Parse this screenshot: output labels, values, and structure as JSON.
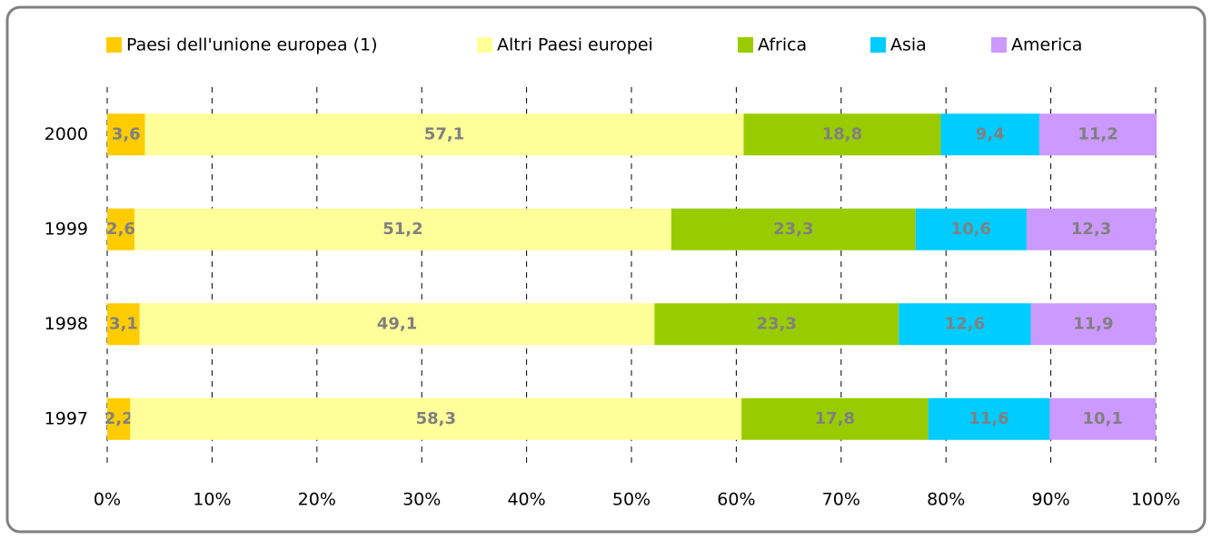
{
  "chart_data": {
    "type": "stacked-bar-horizontal",
    "categories": [
      "2000",
      "1999",
      "1998",
      "1997"
    ],
    "series": [
      {
        "name": "Paesi dell'unione europea (1)",
        "color": "#ffcc00",
        "values": [
          3.6,
          2.6,
          3.1,
          2.2
        ],
        "value_labels": [
          "3,6",
          "2,6",
          "3,1",
          "2,2"
        ]
      },
      {
        "name": "Altri Paesi europei",
        "color": "#ffff99",
        "values": [
          57.1,
          51.2,
          49.1,
          58.3
        ],
        "value_labels": [
          "57,1",
          "51,2",
          "49,1",
          "58,3"
        ]
      },
      {
        "name": "Africa",
        "color": "#99cc00",
        "values": [
          18.8,
          23.3,
          23.3,
          17.8
        ],
        "value_labels": [
          "18,8",
          "23,3",
          "23,3",
          "17,8"
        ]
      },
      {
        "name": "Asia",
        "color": "#00ccff",
        "values": [
          9.4,
          10.6,
          12.6,
          11.6
        ],
        "value_labels": [
          "9,4",
          "10,6",
          "12,6",
          "11,6"
        ]
      },
      {
        "name": "America",
        "color": "#cc99ff",
        "values": [
          11.2,
          12.3,
          11.9,
          10.1
        ],
        "value_labels": [
          "11,2",
          "12,3",
          "11,9",
          "10,1"
        ]
      }
    ],
    "xlim": [
      0,
      100
    ],
    "xticks": [
      {
        "value": 0,
        "label": "0%"
      },
      {
        "value": 10,
        "label": "10%"
      },
      {
        "value": 20,
        "label": "20%"
      },
      {
        "value": 30,
        "label": "30%"
      },
      {
        "value": 40,
        "label": "40%"
      },
      {
        "value": 50,
        "label": "50%"
      },
      {
        "value": 60,
        "label": "60%"
      },
      {
        "value": 70,
        "label": "70%"
      },
      {
        "value": 80,
        "label": "80%"
      },
      {
        "value": 90,
        "label": "90%"
      },
      {
        "value": 100,
        "label": "100%"
      }
    ],
    "grid": true,
    "legend": "top"
  }
}
